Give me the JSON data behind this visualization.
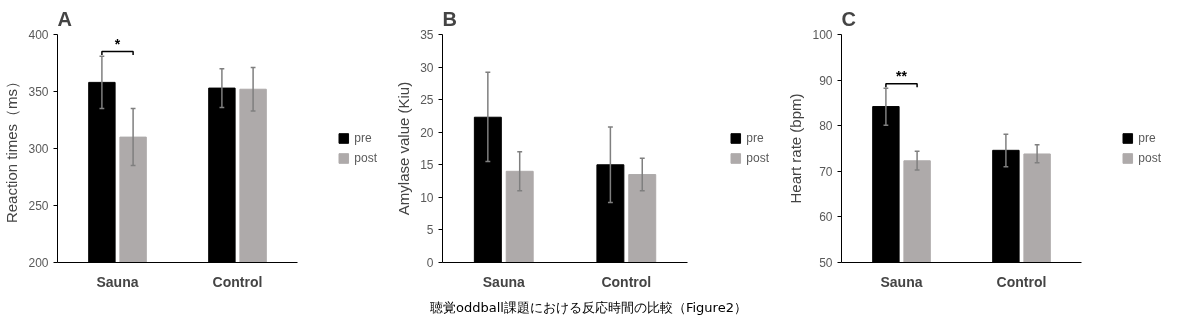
{
  "chart_data": [
    {
      "type": "bar",
      "title": "A",
      "ylabel": "Reaction times（ms）",
      "categories": [
        "Sauna",
        "Control"
      ],
      "ylim": [
        200,
        400
      ],
      "yticks": [
        200,
        250,
        300,
        350,
        400
      ],
      "legend": "right",
      "grid": false,
      "series": [
        {
          "name": "pre",
          "color": "#000000",
          "values": [
            358,
            353
          ],
          "errors": [
            [
              335,
              381
            ],
            [
              336,
              370
            ]
          ]
        },
        {
          "name": "post",
          "color": "#aeaaaa",
          "values": [
            310,
            352
          ],
          "errors": [
            [
              285,
              335
            ],
            [
              333,
              371
            ]
          ]
        }
      ],
      "annotations": [
        "*"
      ]
    },
    {
      "type": "bar",
      "title": "B",
      "ylabel": "Amylase value (Kiu)",
      "categories": [
        "Sauna",
        "Control"
      ],
      "ylim": [
        0,
        35
      ],
      "yticks": [
        0,
        5,
        10,
        15,
        20,
        25,
        30,
        35
      ],
      "legend": "right",
      "grid": false,
      "series": [
        {
          "name": "pre",
          "color": "#000000",
          "values": [
            22.3,
            15
          ],
          "errors": [
            [
              15.5,
              29.2
            ],
            [
              9.2,
              20.8
            ]
          ]
        },
        {
          "name": "post",
          "color": "#aeaaaa",
          "values": [
            14,
            13.5
          ],
          "errors": [
            [
              11,
              17
            ],
            [
              11,
              16
            ]
          ]
        }
      ],
      "annotations": [
        "聴覚oddball課題における反応時間の比較（Figure2）"
      ]
    },
    {
      "type": "bar",
      "title": "C",
      "ylabel": "Heart rate (bpm)",
      "categories": [
        "Sauna",
        "Control"
      ],
      "ylim": [
        50,
        100
      ],
      "yticks": [
        50,
        60,
        70,
        80,
        90,
        100
      ],
      "legend": "right",
      "grid": false,
      "series": [
        {
          "name": "pre",
          "color": "#000000",
          "values": [
            84.2,
            74.6
          ],
          "errors": [
            [
              80.1,
              88.2
            ],
            [
              71,
              78.1
            ]
          ]
        },
        {
          "name": "post",
          "color": "#aeaaaa",
          "values": [
            72.3,
            73.8
          ],
          "errors": [
            [
              70.3,
              74.4
            ],
            [
              71.9,
              75.8
            ]
          ]
        }
      ],
      "annotations": [
        "**"
      ]
    }
  ]
}
